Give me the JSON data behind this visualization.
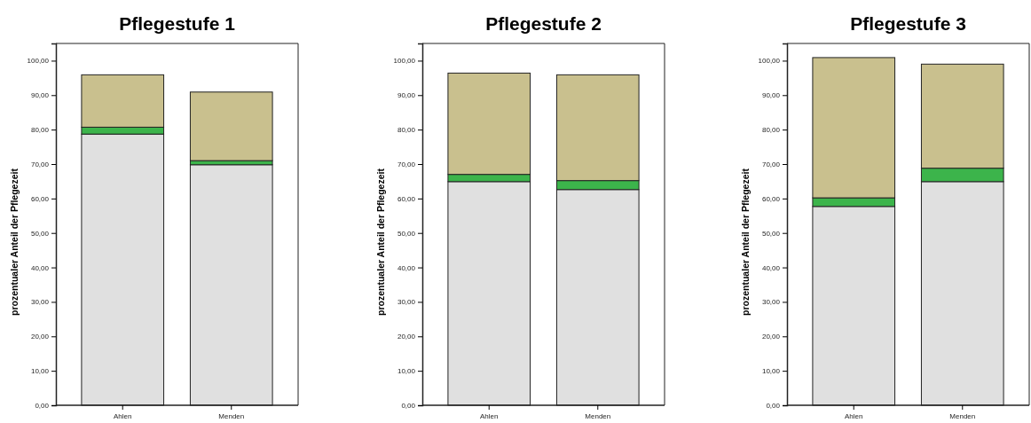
{
  "chart_data": [
    {
      "type": "bar",
      "stacked": true,
      "title": "Pflegestufe 1",
      "ylabel": "prozentualer Anteil der Pflegezeit",
      "categories": [
        "Ahlen",
        "Menden"
      ],
      "series": [
        {
          "color": "#e0e0e0",
          "values": [
            78.7,
            69.8
          ]
        },
        {
          "color": "#3cb44b",
          "values": [
            2.0,
            1.2
          ]
        },
        {
          "color": "#c9c08e",
          "values": [
            15.2,
            19.9
          ]
        }
      ],
      "ylim": [
        0,
        105
      ],
      "yticks": [
        {
          "value": 0,
          "label": "0,00"
        },
        {
          "value": 10,
          "label": "10,00"
        },
        {
          "value": 20,
          "label": "20,00"
        },
        {
          "value": 30,
          "label": "30,00"
        },
        {
          "value": 40,
          "label": "40,00"
        },
        {
          "value": 50,
          "label": "50,00"
        },
        {
          "value": 60,
          "label": "60,00"
        },
        {
          "value": 70,
          "label": "70,00"
        },
        {
          "value": 80,
          "label": "80,00"
        },
        {
          "value": 90,
          "label": "90,00"
        },
        {
          "value": 100,
          "label": "100,00"
        }
      ]
    },
    {
      "type": "bar",
      "stacked": true,
      "title": "Pflegestufe 2",
      "ylabel": "prozentualer Anteil der Pflegezeit",
      "categories": [
        "Ahlen",
        "Menden"
      ],
      "series": [
        {
          "color": "#e0e0e0",
          "values": [
            64.9,
            62.6
          ]
        },
        {
          "color": "#3cb44b",
          "values": [
            2.1,
            2.6
          ]
        },
        {
          "color": "#c9c08e",
          "values": [
            29.4,
            30.7
          ]
        }
      ],
      "ylim": [
        0,
        105
      ],
      "yticks": [
        {
          "value": 0,
          "label": "0,00"
        },
        {
          "value": 10,
          "label": "10,00"
        },
        {
          "value": 20,
          "label": "20,00"
        },
        {
          "value": 30,
          "label": "30,00"
        },
        {
          "value": 40,
          "label": "40,00"
        },
        {
          "value": 50,
          "label": "50,00"
        },
        {
          "value": 60,
          "label": "60,00"
        },
        {
          "value": 70,
          "label": "70,00"
        },
        {
          "value": 80,
          "label": "80,00"
        },
        {
          "value": 90,
          "label": "90,00"
        },
        {
          "value": 100,
          "label": "100,00"
        }
      ]
    },
    {
      "type": "bar",
      "stacked": true,
      "title": "Pflegestufe 3",
      "ylabel": "prozentualer Anteil der Pflegezeit",
      "categories": [
        "Ahlen",
        "Menden"
      ],
      "series": [
        {
          "color": "#e0e0e0",
          "values": [
            57.7,
            64.9
          ]
        },
        {
          "color": "#3cb44b",
          "values": [
            2.5,
            3.9
          ]
        },
        {
          "color": "#c9c08e",
          "values": [
            40.7,
            30.2
          ]
        }
      ],
      "ylim": [
        0,
        105
      ],
      "yticks": [
        {
          "value": 0,
          "label": "0,00"
        },
        {
          "value": 10,
          "label": "10,00"
        },
        {
          "value": 20,
          "label": "20,00"
        },
        {
          "value": 30,
          "label": "30,00"
        },
        {
          "value": 40,
          "label": "40,00"
        },
        {
          "value": 50,
          "label": "50,00"
        },
        {
          "value": 60,
          "label": "60,00"
        },
        {
          "value": 70,
          "label": "70,00"
        },
        {
          "value": 80,
          "label": "80,00"
        },
        {
          "value": 90,
          "label": "90,00"
        },
        {
          "value": 100,
          "label": "100,00"
        }
      ]
    }
  ]
}
